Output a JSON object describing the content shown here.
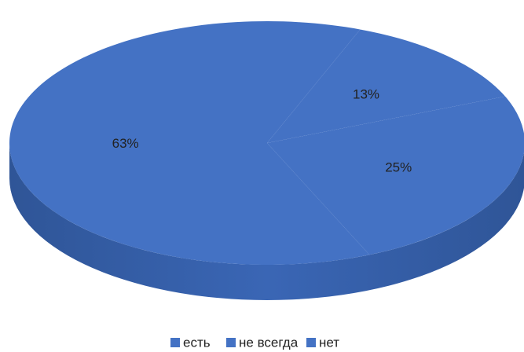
{
  "chart_data": {
    "type": "pie",
    "categories": [
      "есть",
      "не всегда",
      "нет"
    ],
    "values": [
      63,
      13,
      25
    ],
    "value_labels": [
      "63%",
      "13%",
      "25%"
    ],
    "colors": [
      "#4472c4",
      "#4472c4",
      "#4472c4"
    ],
    "legend": "bottom"
  }
}
